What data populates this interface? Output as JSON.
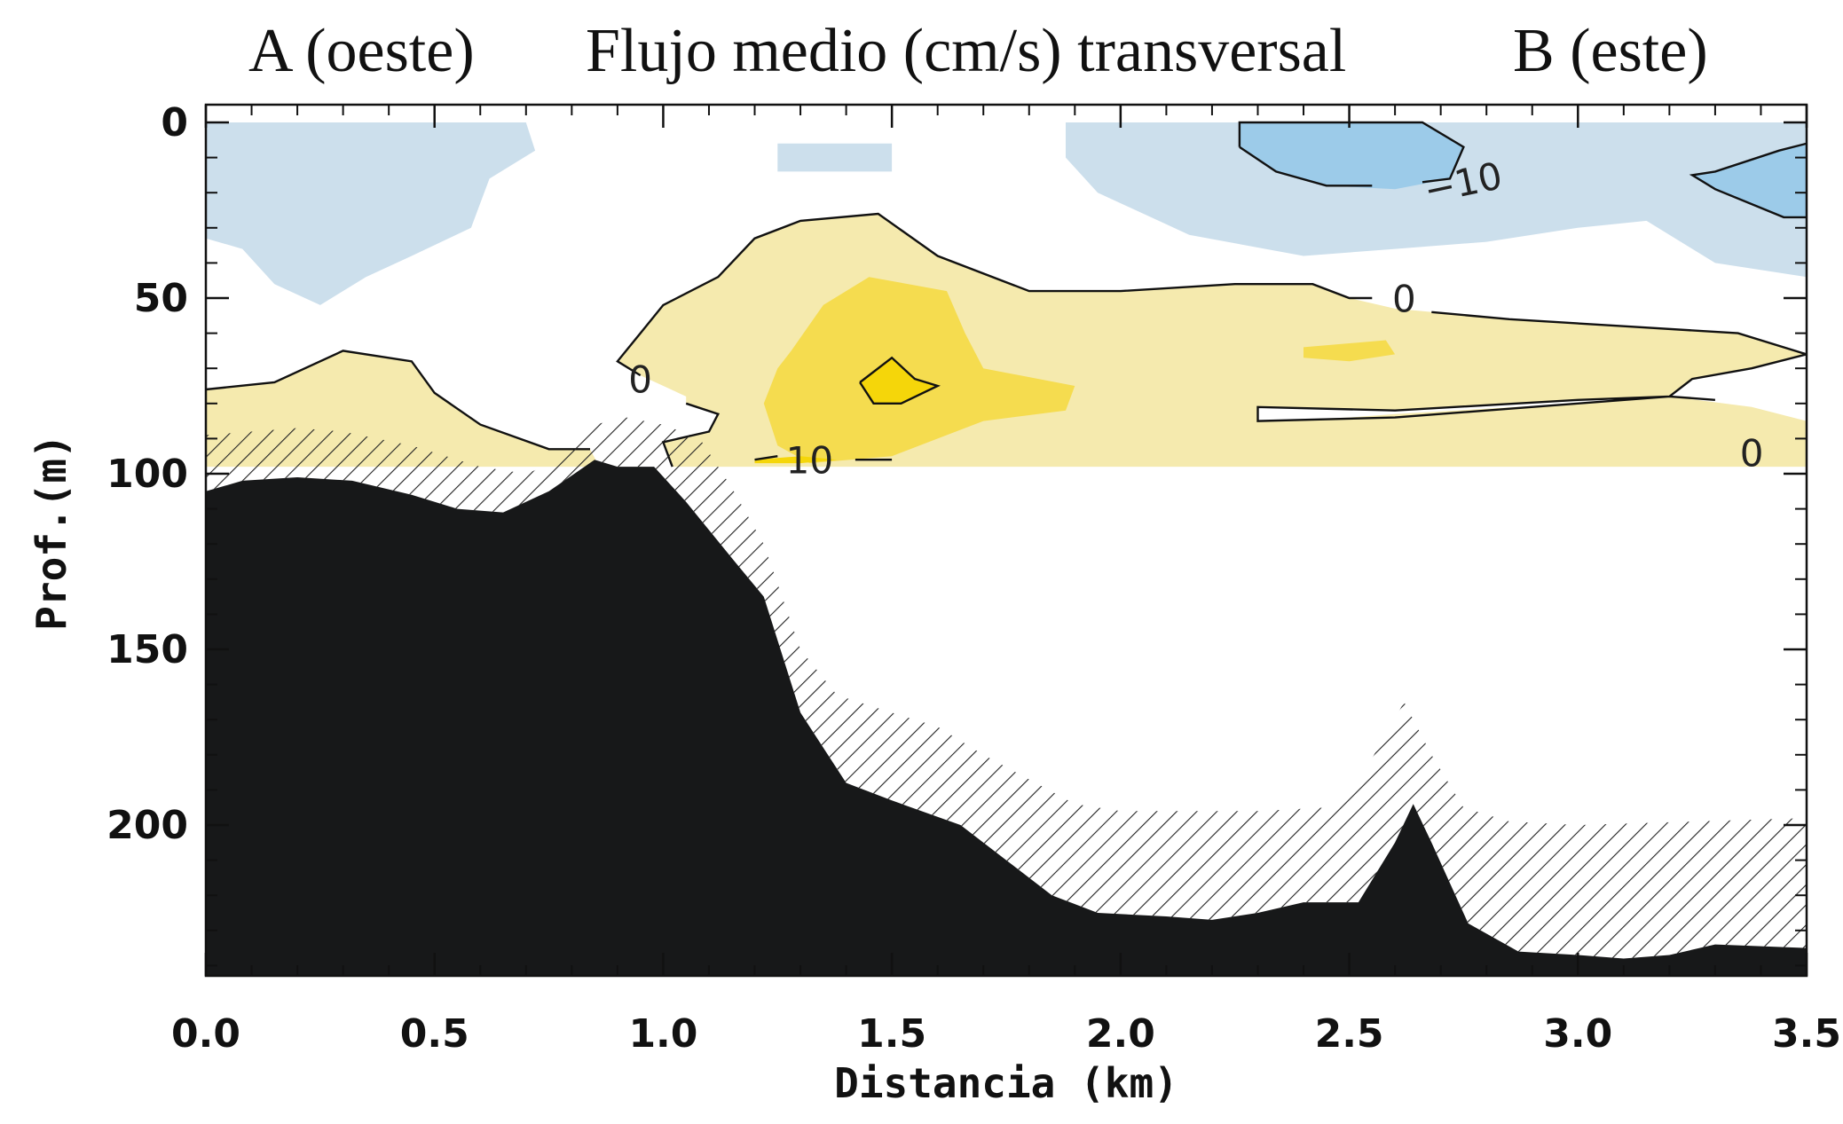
{
  "titles": {
    "left": "A (oeste)",
    "center": "Flujo medio (cm/s) transversal",
    "right": "B (este)"
  },
  "chart_data": {
    "type": "heatmap",
    "title": "Flujo medio (cm/s) transversal",
    "xlabel": "Distancia (km)",
    "ylabel": "Prof.(m)",
    "xlim": [
      0.0,
      3.5
    ],
    "ylim": [
      0,
      245
    ],
    "y_inverted": true,
    "x_ticks": [
      "0.0",
      "0.5",
      "1.0",
      "1.5",
      "2.0",
      "2.5",
      "3.0",
      "3.5"
    ],
    "y_ticks": [
      "0",
      "50",
      "100",
      "150",
      "200"
    ],
    "data_depth_limit_m": 98,
    "contour_levels": [
      -10,
      0,
      10
    ],
    "contour_labels": [
      {
        "text": "0",
        "x": 0.95,
        "y": 74
      },
      {
        "text": "10",
        "x": 1.32,
        "y": 97
      },
      {
        "text": "0",
        "x": 2.62,
        "y": 51
      },
      {
        "text": "−10",
        "x": 2.75,
        "y": 18
      },
      {
        "text": "0",
        "x": 3.38,
        "y": 95
      }
    ],
    "colors": {
      "neg_weak": "#ccdfec",
      "neg_strong": "#9ccbe9",
      "pos_weak": "#f5eaae",
      "pos_mid": "#f5dc4f",
      "pos_strong": "#f5d60a",
      "bathymetry": "#171819"
    },
    "regions": [
      {
        "sign": "neg",
        "level": "weak",
        "points": [
          [
            0.0,
            0
          ],
          [
            0.7,
            0
          ],
          [
            0.72,
            8
          ],
          [
            0.62,
            16
          ],
          [
            0.58,
            30
          ],
          [
            0.45,
            38
          ],
          [
            0.35,
            44
          ],
          [
            0.25,
            52
          ],
          [
            0.15,
            46
          ],
          [
            0.08,
            36
          ],
          [
            0.0,
            33
          ]
        ]
      },
      {
        "sign": "neg",
        "level": "weak",
        "points": [
          [
            1.25,
            6
          ],
          [
            1.5,
            6
          ],
          [
            1.5,
            14
          ],
          [
            1.25,
            14
          ]
        ]
      },
      {
        "sign": "neg",
        "level": "weak",
        "points": [
          [
            1.88,
            0
          ],
          [
            3.5,
            0
          ],
          [
            3.5,
            44
          ],
          [
            3.3,
            40
          ],
          [
            3.15,
            28
          ],
          [
            3.0,
            30
          ],
          [
            2.8,
            34
          ],
          [
            2.6,
            36
          ],
          [
            2.4,
            38
          ],
          [
            2.15,
            32
          ],
          [
            1.95,
            20
          ],
          [
            1.88,
            10
          ]
        ]
      },
      {
        "sign": "neg",
        "level": "strong",
        "points": [
          [
            2.26,
            0
          ],
          [
            2.66,
            0
          ],
          [
            2.75,
            7
          ],
          [
            2.72,
            16
          ],
          [
            2.6,
            19
          ],
          [
            2.45,
            18
          ],
          [
            2.34,
            14
          ],
          [
            2.26,
            7
          ]
        ]
      },
      {
        "sign": "neg",
        "level": "strong",
        "points": [
          [
            3.5,
            6
          ],
          [
            3.44,
            8
          ],
          [
            3.3,
            14
          ],
          [
            3.25,
            15
          ],
          [
            3.3,
            19
          ],
          [
            3.45,
            27
          ],
          [
            3.5,
            27
          ]
        ]
      },
      {
        "sign": "pos",
        "level": "weak",
        "points": [
          [
            0.0,
            76
          ],
          [
            0.15,
            74
          ],
          [
            0.3,
            65
          ],
          [
            0.45,
            68
          ],
          [
            0.5,
            77
          ],
          [
            0.6,
            86
          ],
          [
            0.75,
            93
          ],
          [
            0.84,
            93
          ],
          [
            0.86,
            98
          ],
          [
            0.0,
            98
          ]
        ]
      },
      {
        "sign": "pos",
        "level": "weak",
        "points": [
          [
            1.05,
            80
          ],
          [
            1.12,
            83
          ],
          [
            1.1,
            88
          ],
          [
            1.0,
            91
          ],
          [
            1.02,
            98
          ],
          [
            3.5,
            98
          ],
          [
            3.5,
            85
          ],
          [
            3.38,
            81
          ],
          [
            3.2,
            78
          ],
          [
            3.0,
            80
          ],
          [
            2.6,
            83
          ],
          [
            2.5,
            84
          ],
          [
            2.3,
            85
          ],
          [
            2.3,
            81
          ],
          [
            2.6,
            82
          ],
          [
            3.0,
            79
          ],
          [
            3.2,
            78
          ],
          [
            3.25,
            73
          ],
          [
            3.38,
            70
          ],
          [
            3.5,
            66
          ],
          [
            3.35,
            60
          ],
          [
            3.1,
            58
          ],
          [
            2.85,
            56
          ],
          [
            2.6,
            53
          ],
          [
            2.5,
            50
          ],
          [
            2.42,
            46
          ],
          [
            2.25,
            46
          ],
          [
            2.0,
            48
          ],
          [
            1.8,
            48
          ],
          [
            1.6,
            38
          ],
          [
            1.47,
            26
          ],
          [
            1.3,
            28
          ],
          [
            1.2,
            33
          ],
          [
            1.12,
            44
          ],
          [
            1.0,
            52
          ],
          [
            0.95,
            60
          ],
          [
            0.9,
            68
          ],
          [
            0.95,
            72
          ],
          [
            1.05,
            78
          ]
        ]
      },
      {
        "sign": "pos",
        "level": "mid",
        "points": [
          [
            1.28,
            65
          ],
          [
            1.35,
            52
          ],
          [
            1.45,
            44
          ],
          [
            1.62,
            48
          ],
          [
            1.66,
            60
          ],
          [
            1.7,
            70
          ],
          [
            1.9,
            75
          ],
          [
            1.88,
            82
          ],
          [
            1.7,
            85
          ],
          [
            1.6,
            90
          ],
          [
            1.5,
            95
          ],
          [
            1.32,
            97
          ],
          [
            1.25,
            92
          ],
          [
            1.22,
            80
          ],
          [
            1.25,
            70
          ]
        ]
      },
      {
        "sign": "pos",
        "level": "mid",
        "points": [
          [
            2.4,
            64
          ],
          [
            2.58,
            62
          ],
          [
            2.6,
            66
          ],
          [
            2.5,
            68
          ],
          [
            2.4,
            67
          ]
        ]
      },
      {
        "sign": "pos",
        "level": "strong",
        "points": [
          [
            1.43,
            74
          ],
          [
            1.5,
            67
          ],
          [
            1.55,
            73
          ],
          [
            1.6,
            75
          ],
          [
            1.52,
            80
          ],
          [
            1.46,
            80
          ]
        ]
      },
      {
        "sign": "pos",
        "level": "strong",
        "points": [
          [
            1.2,
            96
          ],
          [
            1.3,
            95
          ],
          [
            1.38,
            96
          ],
          [
            1.3,
            97
          ],
          [
            1.2,
            97
          ]
        ]
      }
    ],
    "contours": [
      {
        "level": 0,
        "points": [
          [
            0.0,
            76
          ],
          [
            0.15,
            74
          ],
          [
            0.3,
            65
          ],
          [
            0.45,
            68
          ],
          [
            0.5,
            77
          ],
          [
            0.6,
            86
          ],
          [
            0.75,
            93
          ],
          [
            0.84,
            93
          ]
        ]
      },
      {
        "level": 0,
        "points": [
          [
            1.05,
            80
          ],
          [
            1.12,
            83
          ],
          [
            1.1,
            88
          ],
          [
            1.0,
            91
          ],
          [
            1.02,
            98
          ]
        ]
      },
      {
        "level": 0,
        "points": [
          [
            0.95,
            72
          ],
          [
            0.9,
            68
          ],
          [
            0.95,
            60
          ],
          [
            1.0,
            52
          ],
          [
            1.12,
            44
          ],
          [
            1.2,
            33
          ],
          [
            1.3,
            28
          ],
          [
            1.47,
            26
          ],
          [
            1.6,
            38
          ],
          [
            1.8,
            48
          ],
          [
            2.0,
            48
          ],
          [
            2.25,
            46
          ],
          [
            2.42,
            46
          ],
          [
            2.5,
            50
          ],
          [
            2.55,
            50
          ]
        ]
      },
      {
        "level": 0,
        "points": [
          [
            2.68,
            54
          ],
          [
            2.85,
            56
          ],
          [
            3.1,
            58
          ],
          [
            3.35,
            60
          ],
          [
            3.5,
            66
          ],
          [
            3.38,
            70
          ],
          [
            3.25,
            73
          ],
          [
            3.2,
            78
          ],
          [
            3.0,
            79
          ],
          [
            2.6,
            82
          ],
          [
            2.3,
            81
          ],
          [
            2.3,
            85
          ],
          [
            2.6,
            84
          ],
          [
            3.0,
            80
          ],
          [
            3.2,
            78
          ],
          [
            3.3,
            79
          ]
        ]
      },
      {
        "level": -10,
        "points": [
          [
            2.26,
            7
          ],
          [
            2.26,
            0
          ],
          [
            2.66,
            0
          ],
          [
            2.75,
            7
          ],
          [
            2.72,
            16
          ],
          [
            2.66,
            17
          ]
        ]
      },
      {
        "level": -10,
        "points": [
          [
            2.55,
            18
          ],
          [
            2.45,
            18
          ],
          [
            2.34,
            14
          ],
          [
            2.26,
            7
          ]
        ]
      },
      {
        "level": -10,
        "points": [
          [
            3.5,
            6
          ],
          [
            3.44,
            8
          ],
          [
            3.3,
            14
          ],
          [
            3.25,
            15
          ],
          [
            3.3,
            19
          ],
          [
            3.45,
            27
          ],
          [
            3.5,
            27
          ]
        ]
      },
      {
        "level": 10,
        "points": [
          [
            1.43,
            74
          ],
          [
            1.5,
            67
          ],
          [
            1.55,
            73
          ],
          [
            1.6,
            75
          ],
          [
            1.52,
            80
          ],
          [
            1.46,
            80
          ],
          [
            1.43,
            74
          ]
        ]
      },
      {
        "level": 10,
        "points": [
          [
            1.2,
            96
          ],
          [
            1.25,
            95
          ]
        ]
      },
      {
        "level": 10,
        "points": [
          [
            1.42,
            96
          ],
          [
            1.5,
            96
          ]
        ]
      }
    ],
    "bathymetry": [
      [
        0.0,
        105
      ],
      [
        0.08,
        102
      ],
      [
        0.2,
        101
      ],
      [
        0.32,
        102
      ],
      [
        0.45,
        106
      ],
      [
        0.55,
        110
      ],
      [
        0.65,
        111
      ],
      [
        0.75,
        105
      ],
      [
        0.85,
        96
      ],
      [
        0.9,
        98
      ],
      [
        0.98,
        98
      ],
      [
        1.05,
        108
      ],
      [
        1.15,
        124
      ],
      [
        1.22,
        135
      ],
      [
        1.3,
        168
      ],
      [
        1.4,
        188
      ],
      [
        1.5,
        193
      ],
      [
        1.65,
        200
      ],
      [
        1.75,
        210
      ],
      [
        1.85,
        220
      ],
      [
        1.95,
        225
      ],
      [
        2.1,
        226
      ],
      [
        2.2,
        227
      ],
      [
        2.3,
        225
      ],
      [
        2.4,
        222
      ],
      [
        2.52,
        222
      ],
      [
        2.6,
        205
      ],
      [
        2.64,
        194
      ],
      [
        2.68,
        205
      ],
      [
        2.76,
        228
      ],
      [
        2.87,
        236
      ],
      [
        3.0,
        237
      ],
      [
        3.1,
        238
      ],
      [
        3.2,
        237
      ],
      [
        3.3,
        234
      ],
      [
        3.5,
        235
      ]
    ],
    "hatch_top": [
      [
        0.0,
        89
      ],
      [
        0.1,
        88
      ],
      [
        0.2,
        87
      ],
      [
        0.3,
        88
      ],
      [
        0.45,
        92
      ],
      [
        0.6,
        98
      ],
      [
        0.7,
        100
      ],
      [
        0.78,
        96
      ],
      [
        0.85,
        86
      ],
      [
        0.92,
        84
      ],
      [
        1.0,
        86
      ],
      [
        1.08,
        90
      ],
      [
        1.15,
        104
      ],
      [
        1.22,
        120
      ],
      [
        1.3,
        150
      ],
      [
        1.38,
        163
      ],
      [
        1.5,
        168
      ],
      [
        1.6,
        172
      ],
      [
        1.7,
        180
      ],
      [
        1.8,
        187
      ],
      [
        1.9,
        194
      ],
      [
        2.0,
        196
      ],
      [
        2.3,
        196
      ],
      [
        2.45,
        195
      ],
      [
        2.55,
        181
      ],
      [
        2.62,
        165
      ],
      [
        2.68,
        180
      ],
      [
        2.75,
        195
      ],
      [
        2.85,
        199
      ],
      [
        3.0,
        200
      ],
      [
        3.5,
        198
      ]
    ]
  }
}
